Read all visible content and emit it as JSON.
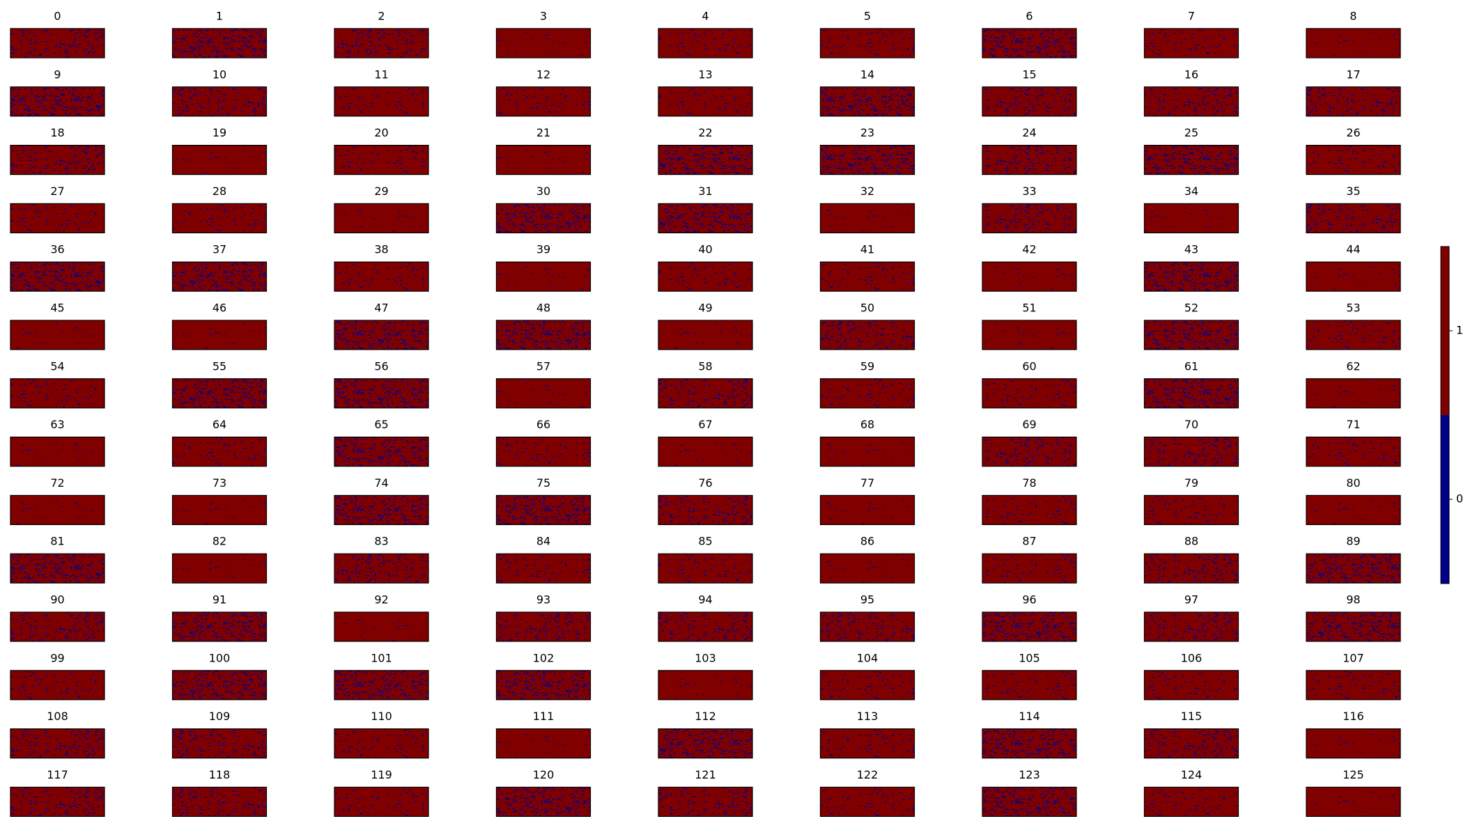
{
  "chart_data": {
    "type": "heatmap-grid",
    "titles": [
      "0",
      "1",
      "2",
      "3",
      "4",
      "5",
      "6",
      "7",
      "8",
      "9",
      "10",
      "11",
      "12",
      "13",
      "14",
      "15",
      "16",
      "17",
      "18",
      "19",
      "20",
      "21",
      "22",
      "23",
      "24",
      "25",
      "26",
      "27",
      "28",
      "29",
      "30",
      "31",
      "32",
      "33",
      "34",
      "35",
      "36",
      "37",
      "38",
      "39",
      "40",
      "41",
      "42",
      "43",
      "44",
      "45",
      "46",
      "47",
      "48",
      "49",
      "50",
      "51",
      "52",
      "53",
      "54",
      "55",
      "56",
      "57",
      "58",
      "59",
      "60",
      "61",
      "62",
      "63",
      "64",
      "65",
      "66",
      "67",
      "68",
      "69",
      "70",
      "71",
      "72",
      "73",
      "74",
      "75",
      "76",
      "77",
      "78",
      "79",
      "80",
      "81",
      "82",
      "83",
      "84",
      "85",
      "86",
      "87",
      "88",
      "89",
      "90",
      "91",
      "92",
      "93",
      "94",
      "95",
      "96",
      "97",
      "98",
      "99",
      "100",
      "101",
      "102",
      "103",
      "104",
      "105",
      "106",
      "107",
      "108",
      "109",
      "110",
      "111",
      "112",
      "113",
      "114",
      "115",
      "116",
      "117",
      "118",
      "119",
      "120",
      "121",
      "122",
      "123",
      "124",
      "125"
    ],
    "columns": 9,
    "colors": [
      "#00008b",
      "#800000"
    ],
    "colorbar": {
      "lim": [
        -0.5,
        1.5
      ],
      "ticks": [
        0,
        1
      ]
    }
  }
}
